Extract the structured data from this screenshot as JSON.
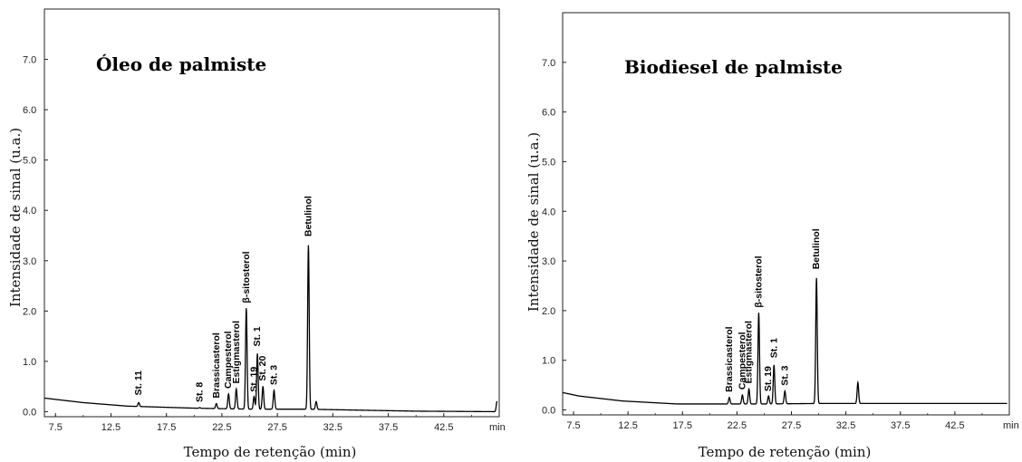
{
  "chart_data": [
    {
      "type": "line",
      "title": "Óleo de palmiste",
      "xlabel": "Tempo de retenção (min)",
      "ylabel": "Intensidade de sinal (u.a.)",
      "x_unit": "min",
      "xlim": [
        6.5,
        47.5
      ],
      "ylim": [
        -0.1,
        8.0
      ],
      "x_ticks": [
        7.5,
        12.5,
        17.5,
        22.5,
        27.5,
        32.5,
        37.5,
        42.5
      ],
      "x_tick_labels": [
        "7.5",
        "12.5",
        "17.5",
        "22.5",
        "27.5",
        "32.5",
        "37.5",
        "42.5"
      ],
      "y_ticks": [
        0,
        1,
        2,
        3,
        4,
        5,
        6,
        7
      ],
      "y_tick_labels": [
        "0.0",
        "1.0",
        "2.0",
        "3.0",
        "4.0",
        "5.0",
        "6.0",
        "7.0"
      ],
      "baseline": [
        [
          6.5,
          0.27
        ],
        [
          10,
          0.18
        ],
        [
          14,
          0.11
        ],
        [
          20,
          0.07
        ],
        [
          25,
          0.05
        ],
        [
          30,
          0.05
        ],
        [
          35,
          0.03
        ],
        [
          40,
          0.01
        ],
        [
          47.3,
          0.0
        ]
      ],
      "peaks": [
        {
          "x": 15.0,
          "y": 0.18,
          "label": "St. 11"
        },
        {
          "x": 20.5,
          "y": 0.08,
          "label": "St. 8"
        },
        {
          "x": 22.0,
          "y": 0.16,
          "label": "Brassicasterol"
        },
        {
          "x": 23.1,
          "y": 0.35,
          "label": "Campesterol"
        },
        {
          "x": 23.8,
          "y": 0.45,
          "label": "Estigmasterol"
        },
        {
          "x": 24.7,
          "y": 2.05,
          "label": "β-sitosterol"
        },
        {
          "x": 25.4,
          "y": 0.3,
          "label": "St. 19"
        },
        {
          "x": 25.7,
          "y": 1.15,
          "label": "St. 1"
        },
        {
          "x": 26.2,
          "y": 0.5,
          "label": "St. 20"
        },
        {
          "x": 27.2,
          "y": 0.42,
          "label": "St. 3"
        },
        {
          "x": 30.3,
          "y": 3.3,
          "label": "Betulinol"
        },
        {
          "x": 31.0,
          "y": 0.2,
          "label": ""
        },
        {
          "x": 47.3,
          "y": 0.2,
          "label": ""
        }
      ]
    },
    {
      "type": "line",
      "title": "Biodiesel de palmiste",
      "xlabel": "Tempo de retenção (min)",
      "ylabel": "Intensidade de sinal (u.a.)",
      "x_unit": "min",
      "xlim": [
        6.5,
        47.5
      ],
      "ylim": [
        -0.1,
        8.0
      ],
      "x_ticks": [
        7.5,
        12.5,
        17.5,
        22.5,
        27.5,
        32.5,
        37.5,
        42.5
      ],
      "x_tick_labels": [
        "7.5",
        "12.5",
        "17.5",
        "22.5",
        "27.5",
        "32.5",
        "37.5",
        "42.5"
      ],
      "y_ticks": [
        0,
        1,
        2,
        3,
        4,
        5,
        6,
        7
      ],
      "y_tick_labels": [
        "0.0",
        "1.0",
        "2.0",
        "3.0",
        "4.0",
        "5.0",
        "6.0",
        "7.0"
      ],
      "baseline": [
        [
          6.5,
          0.35
        ],
        [
          8,
          0.28
        ],
        [
          12,
          0.18
        ],
        [
          17,
          0.12
        ],
        [
          22,
          0.12
        ],
        [
          25,
          0.12
        ],
        [
          30,
          0.13
        ],
        [
          35,
          0.13
        ],
        [
          40,
          0.13
        ],
        [
          47.3,
          0.13
        ]
      ],
      "peaks": [
        {
          "x": 21.8,
          "y": 0.25,
          "label": "Brassicasterol"
        },
        {
          "x": 23.0,
          "y": 0.3,
          "label": "Campesterol"
        },
        {
          "x": 23.6,
          "y": 0.42,
          "label": "Estigmasterol"
        },
        {
          "x": 24.5,
          "y": 1.95,
          "label": "β-sitosterol"
        },
        {
          "x": 25.4,
          "y": 0.28,
          "label": "St. 19"
        },
        {
          "x": 25.9,
          "y": 0.9,
          "label": "St. 1"
        },
        {
          "x": 26.9,
          "y": 0.38,
          "label": "St. 3"
        },
        {
          "x": 29.8,
          "y": 2.65,
          "label": "Betulinol"
        },
        {
          "x": 33.6,
          "y": 0.55,
          "label": ""
        }
      ]
    }
  ]
}
